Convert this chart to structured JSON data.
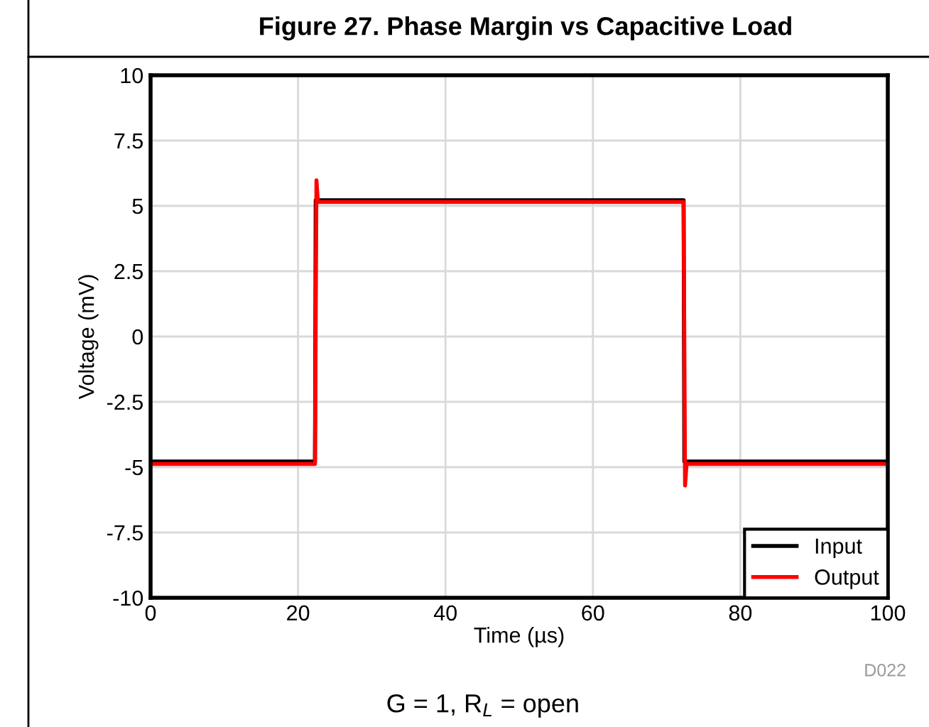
{
  "chart_data": {
    "type": "line",
    "title": "Figure 27. Phase Margin vs Capacitive Load",
    "xlabel": "Time (µs)",
    "ylabel": "Voltage (mV)",
    "xlim": [
      0,
      100
    ],
    "xticks": [
      0,
      20,
      40,
      60,
      80,
      100
    ],
    "ylim": [
      -10,
      10
    ],
    "yticks": [
      -10,
      -7.5,
      -5,
      -2.5,
      0,
      2.5,
      5,
      7.5,
      10
    ],
    "grid": true,
    "legend": "bottom right",
    "line_style": "solid",
    "marker": "none",
    "series": [
      {
        "name": "Input",
        "color": "#000000",
        "x": [
          0,
          22.3,
          22.4,
          72.3,
          72.4,
          100
        ],
        "values": [
          -4.78,
          -4.78,
          5.22,
          5.22,
          -4.78,
          -4.78
        ]
      },
      {
        "name": "Output",
        "color": "#ff0000",
        "x": [
          0,
          22.3,
          22.5,
          22.7,
          72.3,
          72.5,
          72.7,
          100
        ],
        "values": [
          -4.88,
          -4.88,
          5.98,
          5.15,
          5.15,
          -5.7,
          -4.88,
          -4.88
        ]
      }
    ],
    "annotations": [
      "D022",
      "G = 1, R$_{L}$ = open"
    ]
  }
}
